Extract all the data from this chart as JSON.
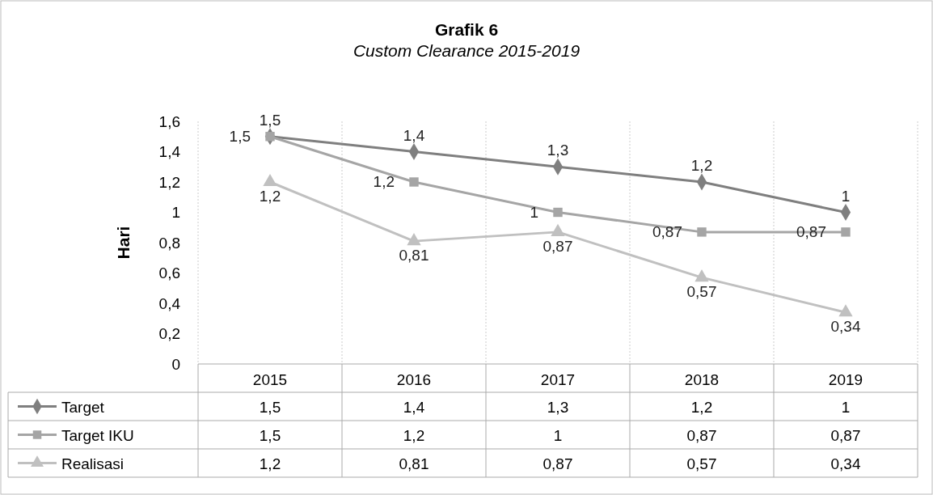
{
  "chart_data": {
    "type": "line",
    "title": "Grafik 6",
    "subtitle": "Custom Clearance 2015-2019",
    "ylabel": "Hari",
    "categories": [
      "2015",
      "2016",
      "2017",
      "2018",
      "2019"
    ],
    "series": [
      {
        "name": "Target",
        "color": "#7f7f7f",
        "marker": "diamond",
        "values": [
          1.5,
          1.4,
          1.3,
          1.2,
          1
        ],
        "value_labels": [
          "1,5",
          "1,4",
          "1,3",
          "1,2",
          "1"
        ]
      },
      {
        "name": "Target IKU",
        "color": "#a5a5a5",
        "marker": "square",
        "values": [
          1.5,
          1.2,
          1,
          0.87,
          0.87
        ],
        "value_labels": [
          "1,5",
          "1,2",
          "1",
          "0,87",
          "0,87"
        ]
      },
      {
        "name": "Realisasi",
        "color": "#c0c0c0",
        "marker": "triangle",
        "values": [
          1.2,
          0.81,
          0.87,
          0.57,
          0.34
        ],
        "value_labels": [
          "1,2",
          "0,81",
          "0,87",
          "0,57",
          "0,34"
        ]
      }
    ],
    "ylim": [
      0,
      1.6
    ],
    "yticks": [
      0,
      {
        "value": 0.2,
        "label": "0,2"
      },
      {
        "value": 0.4,
        "label": "0,4"
      },
      {
        "value": 0.6,
        "label": "0,6"
      },
      {
        "value": 0.8,
        "label": "0,8"
      },
      1,
      {
        "value": 1.2,
        "label": "1,2"
      },
      {
        "value": 1.4,
        "label": "1,4"
      },
      {
        "value": 1.6,
        "label": "1,6"
      }
    ],
    "grid": "x",
    "legend": "bottom",
    "data_labels": true,
    "line_style": "solid"
  }
}
